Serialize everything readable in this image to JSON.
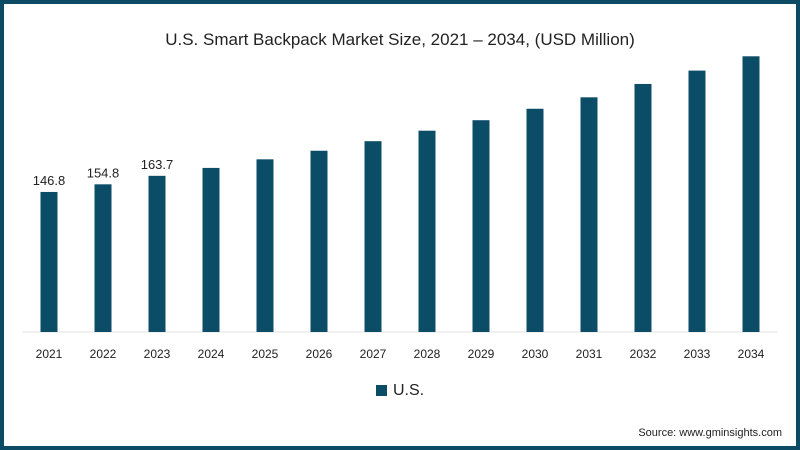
{
  "chart_data": {
    "type": "bar",
    "title": "U.S. Smart Backpack Market Size, 2021 – 2034, (USD Million)",
    "categories": [
      "2021",
      "2022",
      "2023",
      "2024",
      "2025",
      "2026",
      "2027",
      "2028",
      "2029",
      "2030",
      "2031",
      "2032",
      "2033",
      "2034"
    ],
    "series": [
      {
        "name": "U.S.",
        "values": [
          146.8,
          154.8,
          163.7,
          172,
          181,
          190,
          200,
          211,
          222,
          234,
          246,
          260,
          274,
          289
        ],
        "color": "#0b4d66"
      }
    ],
    "data_labels": [
      "146.8",
      "154.8",
      "163.7"
    ],
    "xlabel": "",
    "ylabel": "",
    "ylim": [
      0,
      300
    ],
    "grid": false,
    "legend": "bottom-center"
  },
  "source": "Source: www.gminsights.com"
}
